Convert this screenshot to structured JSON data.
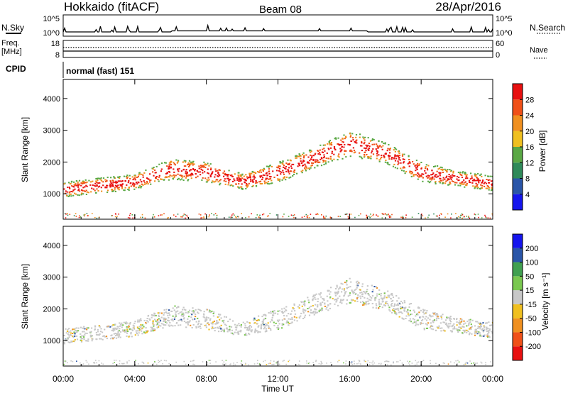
{
  "header": {
    "station": "Hokkaido (fitACF)",
    "beam": "Beam 08",
    "date": "28/Apr/2016",
    "cpid": "normal (fast) 151"
  },
  "meta_panel": {
    "nsky_label": "N.Sky",
    "nsearch_label": "N.Search",
    "freq_label_1": "Freq.",
    "freq_label_2": "[MHz]",
    "nave_label": "Nave",
    "cpid_label": "CPID",
    "noise_ticks": [
      "10^5",
      "10^0"
    ],
    "freq_ticks": [
      "18",
      "8"
    ],
    "nave_ticks": [
      "60",
      "0"
    ]
  },
  "chart_data": [
    {
      "type": "heatmap",
      "title": "Power",
      "ylabel": "Slant Range [km]",
      "xlabel": "Time UT",
      "ylim": [
        200,
        4600
      ],
      "yticks": [
        1000,
        2000,
        3000,
        4000
      ],
      "x_tick_labels": [
        "00:00",
        "04:00",
        "08:00",
        "12:00",
        "16:00",
        "20:00",
        "00:00"
      ],
      "colorbar": {
        "label": "Power [dB]",
        "range": [
          0,
          32
        ],
        "ticks": [
          "4",
          "8",
          "12",
          "16",
          "20",
          "24",
          "28"
        ],
        "colors": [
          "#1515ee",
          "#2a55a8",
          "#2f8a5a",
          "#5aa845",
          "#f0c020",
          "#f09020",
          "#f05018",
          "#e81010"
        ]
      },
      "echo_bands": [
        {
          "hours": [
            0,
            4,
            6,
            8,
            10,
            12,
            14,
            16,
            18,
            20,
            22,
            24
          ],
          "center_km": [
            1150,
            1400,
            1800,
            1700,
            1400,
            1700,
            2150,
            2600,
            2300,
            1700,
            1500,
            1350
          ],
          "width_km": [
            300,
            300,
            400,
            400,
            300,
            400,
            400,
            500,
            400,
            400,
            300,
            300
          ]
        }
      ]
    },
    {
      "type": "heatmap",
      "title": "Velocity",
      "ylabel": "Slant Range [km]",
      "xlabel": "Time UT",
      "ylim": [
        200,
        4600
      ],
      "yticks": [
        1000,
        2000,
        3000,
        4000
      ],
      "x_tick_labels": [
        "00:00",
        "04:00",
        "08:00",
        "12:00",
        "16:00",
        "20:00",
        "00:00"
      ],
      "colorbar": {
        "label": "Velocity [m s⁻¹]",
        "range": [
          -250,
          250
        ],
        "ticks": [
          "200",
          "100",
          "50",
          "15",
          "-15",
          "-50",
          "-100",
          "-200"
        ],
        "colors": [
          "#e81010",
          "#f05018",
          "#f09020",
          "#f0c020",
          "#c8c8c8",
          "#7ac850",
          "#40a050",
          "#2a55a8",
          "#1515ee"
        ]
      }
    }
  ]
}
